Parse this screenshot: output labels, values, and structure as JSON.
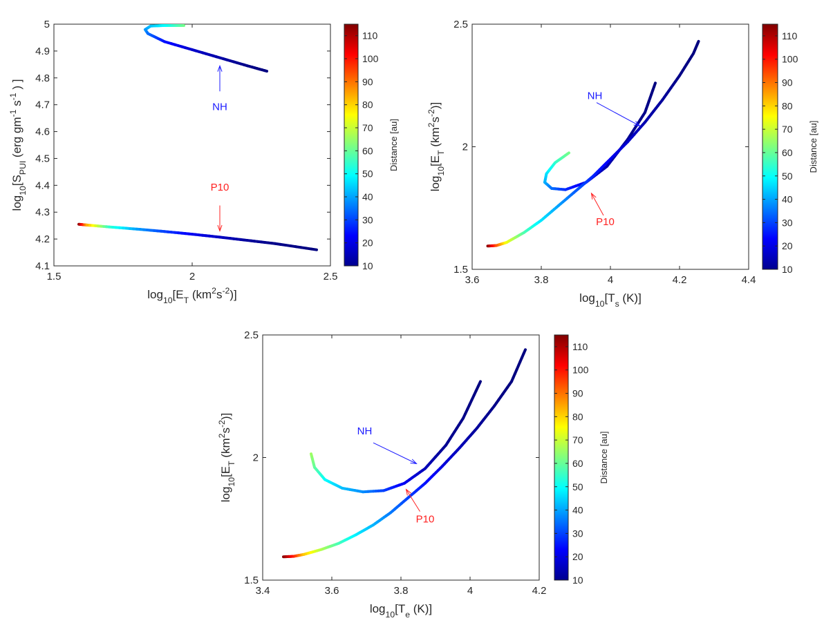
{
  "chart_data": [
    {
      "type": "scatter",
      "title": "",
      "xlabel_parts": [
        {
          "t": "log"
        },
        {
          "t": "10",
          "s": "sub"
        },
        {
          "t": "[E"
        },
        {
          "t": "T",
          "s": "sub"
        },
        {
          "t": " (km"
        },
        {
          "t": "2",
          "s": "sup"
        },
        {
          "t": "s"
        },
        {
          "t": "-2",
          "s": "sup"
        },
        {
          "t": ")]"
        }
      ],
      "ylabel_parts": [
        {
          "t": "log"
        },
        {
          "t": "10",
          "s": "sub"
        },
        {
          "t": "[S"
        },
        {
          "t": "PUI",
          "s": "sub"
        },
        {
          "t": " (erg gm"
        },
        {
          "t": "-1",
          "s": "sup"
        },
        {
          "t": " s"
        },
        {
          "t": "-1",
          "s": "sup"
        },
        {
          "t": " ) ]"
        }
      ],
      "xlim": [
        1.5,
        2.5
      ],
      "ylim": [
        4.1,
        5.0
      ],
      "xticks": [
        "1.5",
        "2",
        "2.5"
      ],
      "xtick_values": [
        1.5,
        2,
        2.5
      ],
      "yticks": [
        "4.1",
        "4.2",
        "4.3",
        "4.4",
        "4.5",
        "4.6",
        "4.7",
        "4.8",
        "4.9",
        "5"
      ],
      "ytick_values": [
        4.1,
        4.2,
        4.3,
        4.4,
        4.5,
        4.6,
        4.7,
        4.8,
        4.9,
        5.0
      ],
      "series": [
        {
          "name": "NH",
          "x": [
            1.97,
            1.9,
            1.85,
            1.83,
            1.84,
            1.9,
            2.0,
            2.1,
            2.2,
            2.27
          ],
          "y": [
            4.995,
            4.995,
            4.993,
            4.98,
            4.965,
            4.935,
            4.905,
            4.875,
            4.845,
            4.825
          ],
          "distance": [
            62,
            50,
            44,
            40,
            35,
            25,
            18,
            14,
            11,
            10
          ]
        },
        {
          "name": "P10",
          "x": [
            1.59,
            1.62,
            1.7,
            1.8,
            1.9,
            2.0,
            2.1,
            2.2,
            2.3,
            2.45
          ],
          "y": [
            4.255,
            4.252,
            4.245,
            4.237,
            4.228,
            4.218,
            4.207,
            4.195,
            4.183,
            4.16
          ],
          "distance": [
            115,
            85,
            55,
            40,
            30,
            22,
            17,
            13,
            11,
            10
          ]
        }
      ],
      "annotations": [
        {
          "text": "NH",
          "color": "#1a1aff",
          "x": 2.1,
          "y": 4.68,
          "arrow_from": [
            2.1,
            4.75
          ],
          "arrow_to": [
            2.1,
            4.845
          ]
        },
        {
          "text": "P10",
          "color": "#ff2020",
          "x": 2.1,
          "y": 4.38,
          "arrow_from": [
            2.1,
            4.325
          ],
          "arrow_to": [
            2.1,
            4.23
          ]
        }
      ],
      "colorbar": {
        "label": "Distance [au]",
        "range": [
          10,
          115
        ],
        "ticks": [
          "10",
          "20",
          "30",
          "40",
          "50",
          "60",
          "70",
          "80",
          "90",
          "100",
          "110"
        ],
        "tick_values": [
          10,
          20,
          30,
          40,
          50,
          60,
          70,
          80,
          90,
          100,
          110
        ],
        "colormap": "jet"
      }
    },
    {
      "type": "scatter",
      "title": "",
      "xlabel_parts": [
        {
          "t": "log"
        },
        {
          "t": "10",
          "s": "sub"
        },
        {
          "t": "[T"
        },
        {
          "t": "s",
          "s": "sub"
        },
        {
          "t": " (K)]"
        }
      ],
      "ylabel_parts": [
        {
          "t": "log"
        },
        {
          "t": "10",
          "s": "sub"
        },
        {
          "t": "[E"
        },
        {
          "t": "T",
          "s": "sub"
        },
        {
          "t": " (km"
        },
        {
          "t": "2",
          "s": "sup"
        },
        {
          "t": "s"
        },
        {
          "t": "-2",
          "s": "sup"
        },
        {
          "t": ")]"
        }
      ],
      "xlim": [
        3.6,
        4.4
      ],
      "ylim": [
        1.5,
        2.5
      ],
      "xticks": [
        "3.6",
        "3.8",
        "4",
        "4.2",
        "4.4"
      ],
      "xtick_values": [
        3.6,
        3.8,
        4.0,
        4.2,
        4.4
      ],
      "yticks": [
        "1.5",
        "2",
        "2.5"
      ],
      "ytick_values": [
        1.5,
        2.0,
        2.5
      ],
      "series": [
        {
          "name": "NH",
          "x": [
            3.88,
            3.84,
            3.815,
            3.81,
            3.83,
            3.87,
            3.93,
            3.99,
            4.05,
            4.1,
            4.13
          ],
          "y": [
            1.975,
            1.935,
            1.89,
            1.855,
            1.83,
            1.825,
            1.855,
            1.92,
            2.03,
            2.14,
            2.26
          ],
          "distance": [
            62,
            55,
            47,
            42,
            35,
            28,
            20,
            15,
            12,
            11,
            10
          ]
        },
        {
          "name": "P10",
          "x": [
            3.645,
            3.67,
            3.7,
            3.75,
            3.8,
            3.85,
            3.9,
            3.95,
            4.0,
            4.05,
            4.1,
            4.15,
            4.2,
            4.24,
            4.255
          ],
          "y": [
            1.595,
            1.597,
            1.61,
            1.65,
            1.7,
            1.76,
            1.82,
            1.88,
            1.95,
            2.02,
            2.1,
            2.19,
            2.29,
            2.38,
            2.43
          ],
          "distance": [
            115,
            95,
            75,
            58,
            47,
            40,
            33,
            27,
            22,
            18,
            15,
            13,
            11,
            10,
            10
          ]
        }
      ],
      "annotations": [
        {
          "text": "NH",
          "color": "#1a1aff",
          "x": 3.955,
          "y": 2.195,
          "arrow_from": [
            3.96,
            2.18
          ],
          "arrow_to": [
            4.085,
            2.085
          ]
        },
        {
          "text": "P10",
          "color": "#ff2020",
          "x": 3.985,
          "y": 1.68,
          "arrow_from": [
            3.98,
            1.72
          ],
          "arrow_to": [
            3.945,
            1.81
          ]
        }
      ],
      "colorbar": {
        "label": "Distance [au]",
        "range": [
          10,
          115
        ],
        "ticks": [
          "10",
          "20",
          "30",
          "40",
          "50",
          "60",
          "70",
          "80",
          "90",
          "100",
          "110"
        ],
        "tick_values": [
          10,
          20,
          30,
          40,
          50,
          60,
          70,
          80,
          90,
          100,
          110
        ],
        "colormap": "jet"
      }
    },
    {
      "type": "scatter",
      "title": "",
      "xlabel_parts": [
        {
          "t": "log"
        },
        {
          "t": "10",
          "s": "sub"
        },
        {
          "t": "[T"
        },
        {
          "t": "e",
          "s": "sub"
        },
        {
          "t": " (K)]"
        }
      ],
      "ylabel_parts": [
        {
          "t": "log"
        },
        {
          "t": "10",
          "s": "sub"
        },
        {
          "t": "[E"
        },
        {
          "t": "T",
          "s": "sub"
        },
        {
          "t": " (km"
        },
        {
          "t": "2",
          "s": "sup"
        },
        {
          "t": "s"
        },
        {
          "t": "-2",
          "s": "sup"
        },
        {
          "t": ")]"
        }
      ],
      "xlim": [
        3.4,
        4.2
      ],
      "ylim": [
        1.5,
        2.5
      ],
      "xticks": [
        "3.4",
        "3.6",
        "3.8",
        "4",
        "4.2"
      ],
      "xtick_values": [
        3.4,
        3.6,
        3.8,
        4.0,
        4.2
      ],
      "yticks": [
        "1.5",
        "2",
        "2.5"
      ],
      "ytick_values": [
        1.5,
        2.0,
        2.5
      ],
      "series": [
        {
          "name": "NH",
          "x": [
            3.54,
            3.55,
            3.58,
            3.63,
            3.69,
            3.75,
            3.81,
            3.87,
            3.93,
            3.98,
            4.03
          ],
          "y": [
            2.015,
            1.96,
            1.91,
            1.875,
            1.86,
            1.865,
            1.895,
            1.955,
            2.05,
            2.16,
            2.31
          ],
          "distance": [
            66,
            60,
            50,
            43,
            38,
            30,
            22,
            16,
            12,
            11,
            10
          ]
        },
        {
          "name": "P10",
          "x": [
            3.46,
            3.49,
            3.52,
            3.57,
            3.62,
            3.67,
            3.72,
            3.77,
            3.82,
            3.87,
            3.92,
            3.97,
            4.02,
            4.07,
            4.12,
            4.16
          ],
          "y": [
            1.595,
            1.597,
            1.605,
            1.625,
            1.65,
            1.685,
            1.725,
            1.775,
            1.835,
            1.895,
            1.965,
            2.04,
            2.12,
            2.21,
            2.31,
            2.44
          ],
          "distance": [
            115,
            100,
            82,
            68,
            57,
            48,
            42,
            36,
            30,
            25,
            20,
            16,
            13,
            11,
            10,
            10
          ]
        }
      ],
      "annotations": [
        {
          "text": "NH",
          "color": "#1a1aff",
          "x": 3.695,
          "y": 2.095,
          "arrow_from": [
            3.72,
            2.06
          ],
          "arrow_to": [
            3.845,
            1.975
          ]
        },
        {
          "text": "P10",
          "color": "#ff2020",
          "x": 3.87,
          "y": 1.735,
          "arrow_from": [
            3.855,
            1.78
          ],
          "arrow_to": [
            3.815,
            1.87
          ]
        }
      ],
      "colorbar": {
        "label": "Distance [au]",
        "range": [
          10,
          115
        ],
        "ticks": [
          "10",
          "20",
          "30",
          "40",
          "50",
          "60",
          "70",
          "80",
          "90",
          "100",
          "110"
        ],
        "tick_values": [
          10,
          20,
          30,
          40,
          50,
          60,
          70,
          80,
          90,
          100,
          110
        ],
        "colormap": "jet"
      }
    }
  ]
}
